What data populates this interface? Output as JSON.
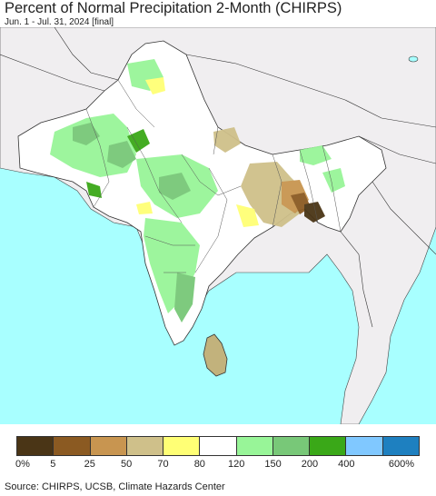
{
  "header": {
    "title": "Percent of Normal Precipitation 2-Month (CHIRPS)",
    "subtitle": "Jun. 1 - Jul. 31, 2024 [final]"
  },
  "legend": {
    "colors": [
      "#4a3516",
      "#8b5a22",
      "#c89550",
      "#cfc08a",
      "#ffff75",
      "#ffffff",
      "#98f598",
      "#78c878",
      "#3aa818",
      "#80c8ff",
      "#1e80c0"
    ],
    "labels": [
      "0%",
      "5",
      "25",
      "50",
      "70",
      "80",
      "120",
      "150",
      "200",
      "400",
      "600%"
    ]
  },
  "map_colors": {
    "ocean": "#a8ffff",
    "outside_land": "#f0eef0",
    "border": "#222222"
  },
  "footer": {
    "source": "Source: CHIRPS, UCSB, Climate Hazards Center"
  }
}
